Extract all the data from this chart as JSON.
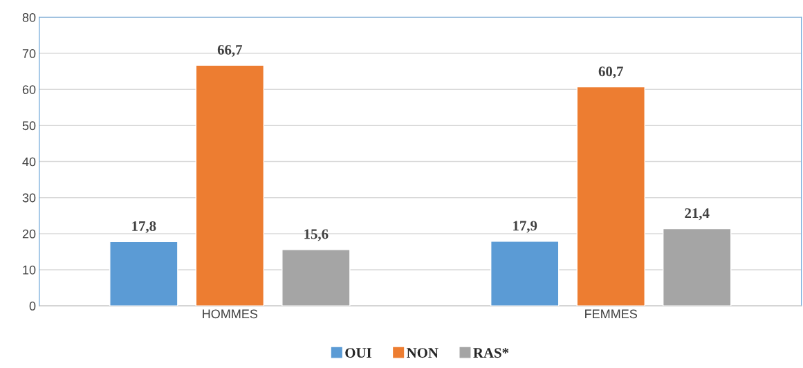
{
  "chart_data": {
    "type": "bar",
    "categories": [
      "HOMMES",
      "FEMMES"
    ],
    "series": [
      {
        "name": "OUI",
        "color": "#5b9bd5",
        "values": [
          17.8,
          17.9
        ],
        "value_labels": [
          "17,8",
          "17,9"
        ]
      },
      {
        "name": "NON",
        "color": "#ed7d31",
        "values": [
          66.7,
          60.7
        ],
        "value_labels": [
          "66,7",
          "60,7"
        ]
      },
      {
        "name": "RAS*",
        "color": "#a5a5a5",
        "values": [
          15.6,
          21.4
        ],
        "value_labels": [
          "15,6",
          "21,4"
        ]
      }
    ],
    "ylim": [
      0,
      80
    ],
    "yticks": [
      0,
      10,
      20,
      30,
      40,
      50,
      60,
      70,
      80
    ],
    "grid": "y",
    "legend": "bottom"
  }
}
